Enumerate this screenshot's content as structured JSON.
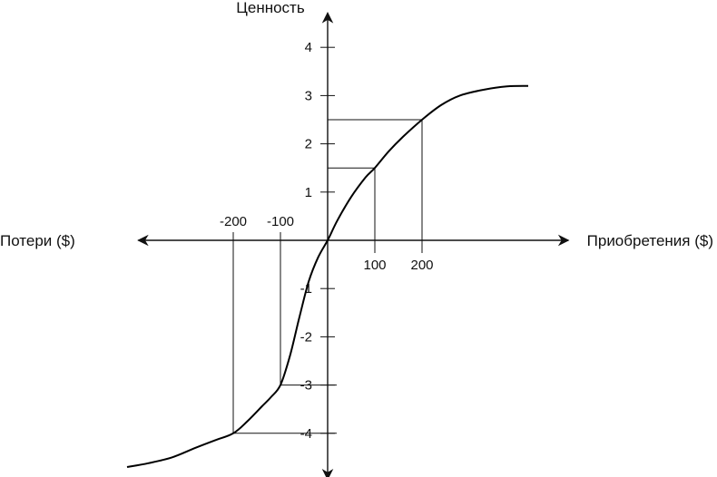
{
  "chart_data": {
    "type": "line",
    "title": "",
    "xlabel_positive": "Приобретения ($)",
    "xlabel_negative": "Потери ($)",
    "ylabel": "Ценность",
    "xlim": [
      -430,
      460
    ],
    "ylim": [
      -4.8,
      4.9
    ],
    "grid": false,
    "legend": "none",
    "x_ticks": [
      {
        "value": -200,
        "label": "-200"
      },
      {
        "value": -100,
        "label": "-100"
      },
      {
        "value": 100,
        "label": "100"
      },
      {
        "value": 200,
        "label": "200"
      }
    ],
    "y_ticks": [
      {
        "value": 4,
        "label": "4"
      },
      {
        "value": 3,
        "label": "3"
      },
      {
        "value": 2,
        "label": "2"
      },
      {
        "value": 1,
        "label": "1"
      },
      {
        "value": -1,
        "label": "-1"
      },
      {
        "value": -2,
        "label": "-2"
      },
      {
        "value": -3,
        "label": "-3"
      },
      {
        "value": -4,
        "label": "-4"
      }
    ],
    "reference_points": [
      {
        "x": 100,
        "y": 1.5
      },
      {
        "x": 200,
        "y": 2.5
      },
      {
        "x": -100,
        "y": -3
      },
      {
        "x": -200,
        "y": -4
      }
    ],
    "series": [
      {
        "x": [
          -425,
          -380,
          -330,
          -280,
          -240,
          -200,
          -170,
          -140,
          -120,
          -100,
          -80,
          -60,
          -40,
          -20,
          0,
          20,
          50,
          80,
          100,
          130,
          160,
          200,
          240,
          280,
          330,
          380,
          425
        ],
        "y": [
          -4.7,
          -4.62,
          -4.5,
          -4.3,
          -4.15,
          -4.0,
          -3.75,
          -3.45,
          -3.25,
          -3.0,
          -2.4,
          -1.6,
          -0.85,
          -0.35,
          0.0,
          0.4,
          0.9,
          1.3,
          1.5,
          1.85,
          2.15,
          2.5,
          2.8,
          3.0,
          3.12,
          3.19,
          3.2
        ]
      }
    ]
  }
}
